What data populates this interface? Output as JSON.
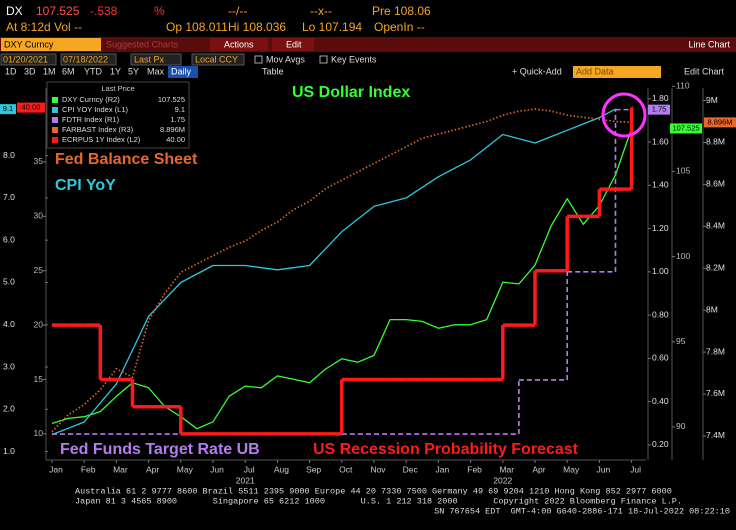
{
  "header": {
    "ticker": "DX",
    "last": "107.525",
    "change": "-.538",
    "pct": "%",
    "bid_ask": "--/--",
    "size": "--x--",
    "pre": "Pre 108.06",
    "time_vol": "At 8:12d Vol --",
    "open": "Op 108.011",
    "high": "Hi 108.036",
    "low": "Lo 107.194",
    "open_int": "OpenIn --"
  },
  "toolbar": {
    "security": "DXY Curncy",
    "suggested": "Suggested Charts",
    "actions": "Actions",
    "edit": "Edit",
    "chart_kind": "Line Chart",
    "start_date": "01/20/2021",
    "end_date": "07/18/2022",
    "field": "Last Px",
    "currency": "Local CCY",
    "mov_avgs": "Mov Avgs",
    "key_events": "Key Events",
    "periods": [
      "1D",
      "3D",
      "1M",
      "6M",
      "YTD",
      "1Y",
      "5Y",
      "Max"
    ],
    "frequency": "Daily",
    "table": "Table",
    "quick_add": "+ Quick-Add",
    "add_data": "Add Data",
    "edit_chart": "Edit Chart"
  },
  "chart_data": {
    "type": "line",
    "legend_title": "Last Price",
    "categories": [
      "Jan",
      null,
      "Feb",
      null,
      "Mar",
      null,
      "Apr",
      null,
      "May",
      null,
      "Jun",
      null,
      "Jul",
      null,
      "Aug",
      null,
      "Sep",
      null,
      "Oct",
      null,
      "Nov",
      null,
      "Dec",
      null,
      "Jan",
      null,
      "Feb",
      null,
      "Mar",
      null,
      "Apr",
      null,
      "May",
      null,
      "Jun",
      null,
      "Jul"
    ],
    "year_labels": [
      "2021",
      "2022"
    ],
    "axes": [
      {
        "id": "L1",
        "ylim": [
          0.8,
          9.6
        ],
        "color": "#e0e0e0",
        "yticks": [
          {
            "value": 1,
            "label": "1.0"
          },
          {
            "value": 2,
            "label": "2.0"
          },
          {
            "value": 3,
            "label": "3.0"
          },
          {
            "value": 4,
            "label": "4.0"
          },
          {
            "value": 5,
            "label": "5.0"
          },
          {
            "value": 6,
            "label": "6.0"
          },
          {
            "value": 7,
            "label": "7.0"
          },
          {
            "value": 8,
            "label": "8.0"
          }
        ]
      },
      {
        "id": "L2",
        "ylim": [
          7.6,
          41.8
        ],
        "color": "#bbbbbb",
        "yticks": [
          10,
          15,
          20,
          25,
          30,
          35
        ]
      },
      {
        "id": "R1",
        "ylim": [
          0.13,
          1.85
        ],
        "color": "#e0e0e0",
        "yticks": [
          {
            "value": 0.2,
            "label": "0.20"
          },
          {
            "value": 0.4,
            "label": "0.40"
          },
          {
            "value": 0.6,
            "label": "0.60"
          },
          {
            "value": 0.8,
            "label": "0.80"
          },
          {
            "value": 1,
            "label": "1.00"
          },
          {
            "value": 1.2,
            "label": "1.20"
          },
          {
            "value": 1.4,
            "label": "1.40"
          },
          {
            "value": 1.6,
            "label": "1.60"
          },
          {
            "value": 1.8,
            "label": "1.80"
          }
        ]
      },
      {
        "id": "R2",
        "ylim": [
          88.06,
          109.9
        ],
        "color": "#bbbbbb",
        "yticks": [
          90,
          95,
          100,
          105,
          110
        ]
      },
      {
        "id": "R3",
        "ylim": [
          7285000,
          9060000
        ],
        "color": "#e0e0e0",
        "yticks": [
          {
            "value": 7400000,
            "label": "7.4M"
          },
          {
            "value": 7600000,
            "label": "7.6M"
          },
          {
            "value": 7800000,
            "label": "7.8M"
          },
          {
            "value": 8000000,
            "label": "8M"
          },
          {
            "value": 8200000,
            "label": "8.2M"
          },
          {
            "value": 8400000,
            "label": "8.4M"
          },
          {
            "value": 8600000,
            "label": "8.6M"
          },
          {
            "value": 8800000,
            "label": "8.8M"
          },
          {
            "value": 9000000,
            "label": "9M"
          }
        ]
      }
    ],
    "series": [
      {
        "name": "DXY Curncy (R2)",
        "last_label": "107.525",
        "axis": "R2",
        "color": "#33ff33",
        "line_style": "solid",
        "values": [
          90.2,
          90.5,
          90.6,
          90.9,
          91.8,
          92.6,
          92.3,
          91.2,
          90.6,
          89.9,
          90.3,
          91.8,
          92.4,
          92.3,
          93.0,
          92.8,
          92.6,
          93.4,
          94.0,
          93.8,
          94.2,
          96.3,
          96.3,
          96.2,
          95.8,
          96.0,
          96.0,
          96.3,
          98.5,
          98.4,
          99.5,
          101.8,
          103.4,
          101.9,
          103.0,
          104.8,
          107.525
        ]
      },
      {
        "name": "CPI YOY Index (L1)",
        "last_label": "9.1",
        "axis": "L1",
        "color": "#2ec8dc",
        "line_style": "solid",
        "values": [
          1.4,
          1.55,
          1.7,
          2.15,
          2.6,
          3.4,
          4.2,
          4.6,
          5.0,
          5.2,
          5.4,
          5.4,
          5.4,
          5.35,
          5.3,
          5.35,
          5.4,
          5.8,
          6.2,
          6.5,
          6.8,
          6.9,
          7.0,
          7.25,
          7.5,
          7.7,
          7.9,
          8.2,
          8.5,
          8.4,
          8.3,
          8.45,
          8.6,
          8.75,
          8.9,
          9.1,
          null
        ]
      },
      {
        "name": "FDTR Index (R1)",
        "last_label": "1.75",
        "axis": "R1",
        "color": "#b57cf0",
        "line_style": "dashed",
        "drawstyle": "steps-post",
        "values": [
          0.25,
          0.25,
          0.25,
          0.25,
          0.25,
          0.25,
          0.25,
          0.25,
          0.25,
          0.25,
          0.25,
          0.25,
          0.25,
          0.25,
          0.25,
          0.25,
          0.25,
          0.25,
          0.25,
          0.25,
          0.25,
          0.25,
          0.25,
          0.25,
          0.25,
          0.25,
          0.25,
          0.25,
          0.25,
          0.5,
          0.5,
          0.5,
          1,
          1,
          1,
          1.75,
          1.75
        ]
      },
      {
        "name": "FARBAST Index (R3)",
        "last_label": "8.896M",
        "axis": "R3",
        "color": "#e8682a",
        "line_style": "dotted",
        "values": [
          7420000,
          7500000,
          7550000,
          7620000,
          7720000,
          7680000,
          7950000,
          8080000,
          8180000,
          8220000,
          8260000,
          8300000,
          8330000,
          8380000,
          8420000,
          8480000,
          8520000,
          8580000,
          8620000,
          8660000,
          8700000,
          8740000,
          8780000,
          8820000,
          8840000,
          8860000,
          8880000,
          8900000,
          8930000,
          8950000,
          8960000,
          8950000,
          8930000,
          8920000,
          8910000,
          8900000,
          8896000
        ]
      },
      {
        "name": "ECRPUS 1Y Index (L2)",
        "last_label": "40.00",
        "axis": "L2",
        "color": "#ff1a1a",
        "line_style": "bold",
        "drawstyle": "steps-post",
        "values": [
          20,
          20,
          20,
          15,
          15,
          12.5,
          12.5,
          12.5,
          10,
          10,
          10,
          10,
          10,
          10,
          10,
          10,
          10,
          10,
          15,
          15,
          15,
          15,
          15,
          15,
          15,
          15,
          15,
          15,
          20,
          20,
          25,
          25,
          30,
          30,
          32.5,
          32.5,
          40
        ]
      }
    ],
    "annotations": [
      {
        "text": "US Dollar Index",
        "color": "#33ff33"
      },
      {
        "text": "Fed Balance Sheet",
        "color": "#e8682a"
      },
      {
        "text": "CPI YoY",
        "color": "#2ec8dc"
      },
      {
        "text": "Fed Funds Target Rate UB",
        "color": "#b57cf0"
      },
      {
        "text": "US Recession Probability Forecast",
        "color": "#ff1a1a"
      }
    ]
  },
  "footer": {
    "line1": "Australia 61 2 9777 8600 Brazil 5511 2395 9000 Europe 44 20 7330 7500 Germany 49 69 9204 1210 Hong Kong 852 2977 6000",
    "line2": "Japan 81 3 4565 8900       Singapore 65 6212 1000       U.S. 1 212 318 2000       Copyright 2022 Bloomberg Finance L.P.",
    "line3": "SN 767654 EDT  GMT-4:00 G640-2886-171 18-Jul-2022 08:22:10"
  }
}
